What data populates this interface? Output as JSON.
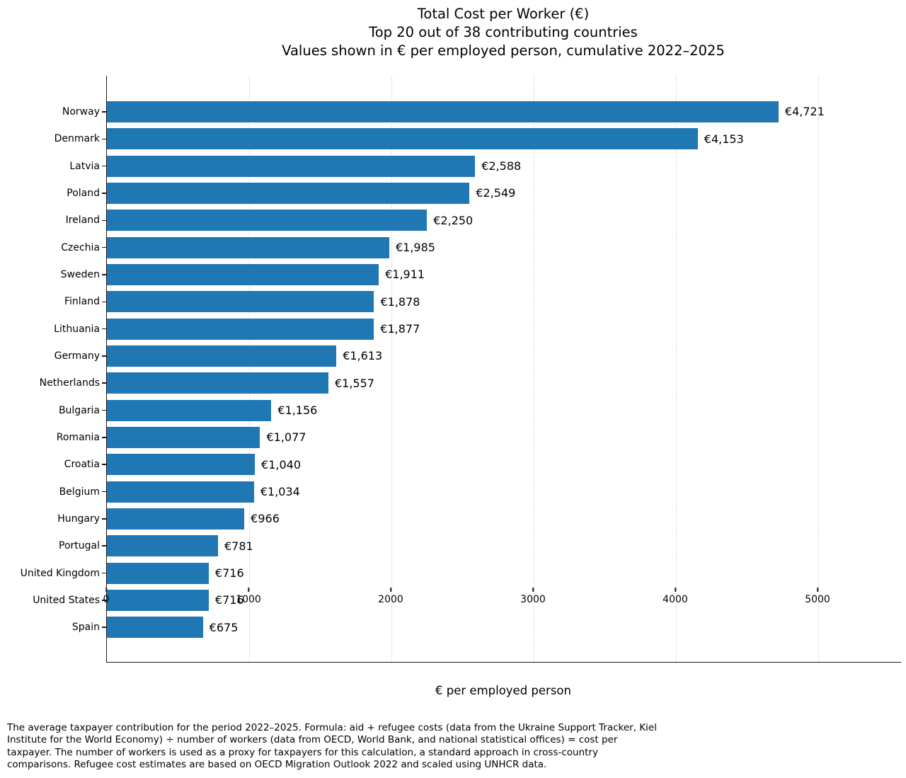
{
  "title": {
    "line1": "Total Cost per Worker (€)",
    "line2": "Top 20 out of 38 contributing countries",
    "line3": "Values shown in € per employed person, cumulative 2022–2025"
  },
  "chart_data": {
    "type": "bar",
    "orientation": "horizontal",
    "title": "Total Cost per Worker (€)",
    "subtitle": "Top 20 out of 38 contributing countries",
    "subtitle2": "Values shown in € per employed person, cumulative 2022–2025",
    "xlabel": "€ per employed person",
    "ylabel": "",
    "xlim": [
      0,
      5582
    ],
    "x_ticks": [
      0,
      1000,
      2000,
      3000,
      4000,
      5000
    ],
    "x_tick_labels": [
      "0",
      "1000",
      "2000",
      "3000",
      "4000",
      "5000"
    ],
    "grid": "vertical-dotted",
    "legend": "none",
    "bar_color": "#1f77b4",
    "categories": [
      "Norway",
      "Denmark",
      "Latvia",
      "Poland",
      "Ireland",
      "Czechia",
      "Sweden",
      "Finland",
      "Lithuania",
      "Germany",
      "Netherlands",
      "Bulgaria",
      "Romania",
      "Croatia",
      "Belgium",
      "Hungary",
      "Portugal",
      "United Kingdom",
      "United States",
      "Spain"
    ],
    "values": [
      4721,
      4153,
      2588,
      2549,
      2250,
      1985,
      1911,
      1878,
      1877,
      1613,
      1557,
      1156,
      1077,
      1040,
      1034,
      966,
      781,
      716,
      716,
      675
    ],
    "value_labels": [
      "€4,721",
      "€4,153",
      "€2,588",
      "€2,549",
      "€2,250",
      "€1,985",
      "€1,911",
      "€1,878",
      "€1,877",
      "€1,613",
      "€1,557",
      "€1,156",
      "€1,077",
      "€1,040",
      "€1,034",
      "€966",
      "€781",
      "€716",
      "€716",
      "€675"
    ]
  },
  "footnote": {
    "line1": "The average taxpayer contribution for the period 2022–2025. Formula: aid + refugee costs (data from the Ukraine Support Tracker, Kiel",
    "line2": "Institute for the World Economy) ÷ number of workers (data from OECD, World Bank, and national statistical offices) = cost per",
    "line3": "taxpayer. The number of workers is used as a proxy for taxpayers for this calculation, a standard approach in cross-country",
    "line4": "comparisons. Refugee cost estimates are based on OECD Migration Outlook 2022 and scaled using UNHCR data."
  }
}
